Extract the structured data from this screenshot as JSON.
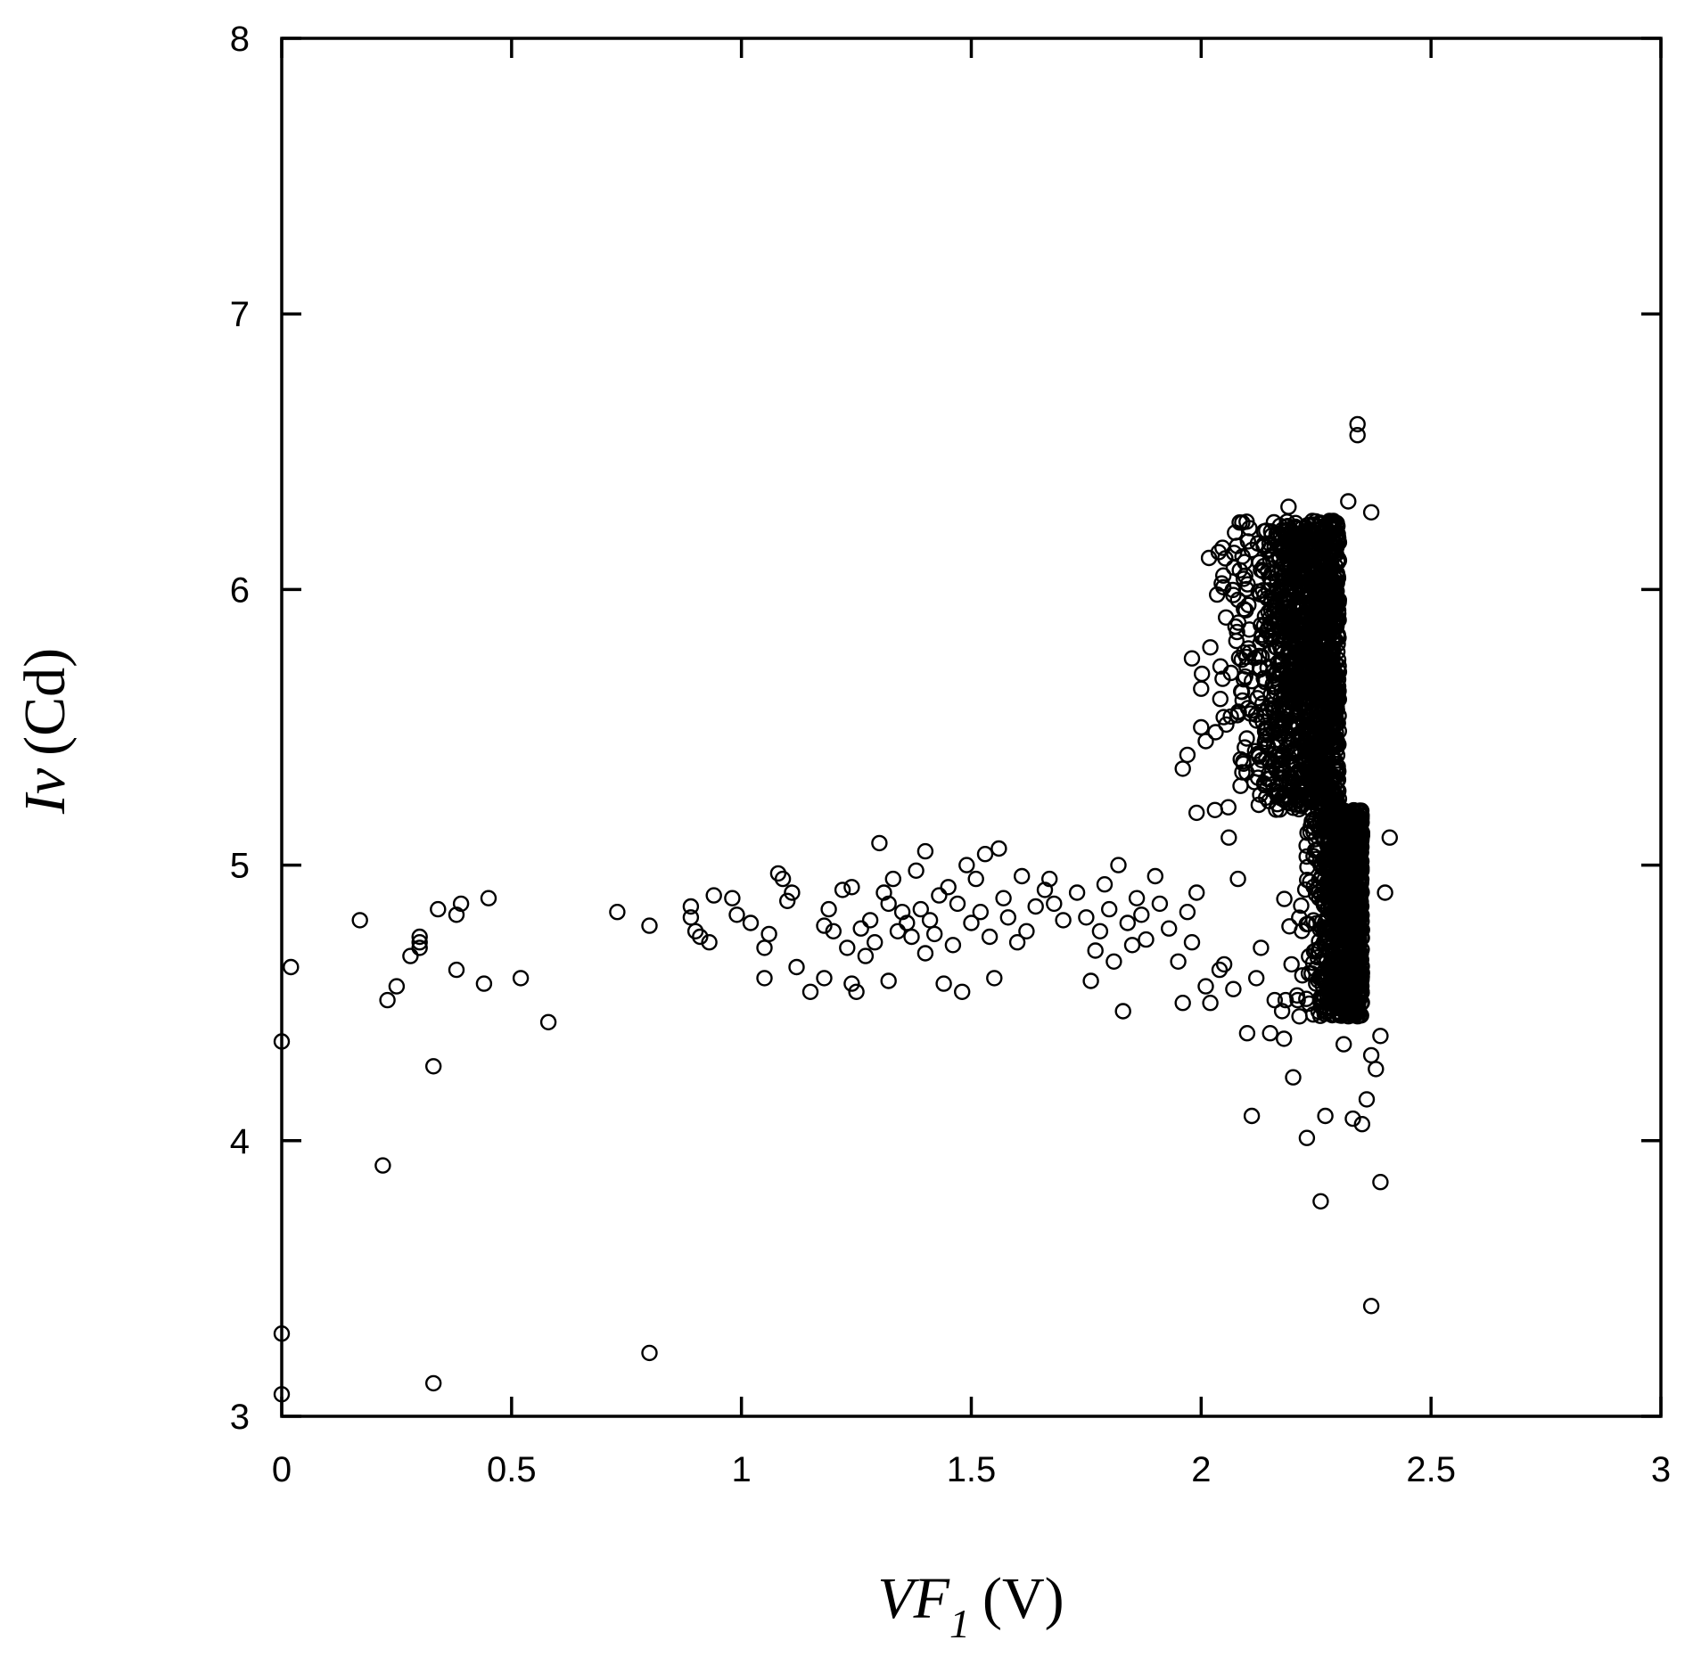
{
  "chart_data": {
    "type": "scatter",
    "title": "",
    "xlabel": {
      "main": "VF",
      "sub": "1",
      "unit": "(V)"
    },
    "ylabel": {
      "main": "Iv",
      "unit": "(Cd)"
    },
    "xlim": [
      0,
      3
    ],
    "ylim": [
      3,
      8
    ],
    "xticks": [
      0,
      0.5,
      1,
      1.5,
      2,
      2.5,
      3
    ],
    "yticks": [
      3,
      4,
      5,
      6,
      7,
      8
    ],
    "xtick_labels": [
      "0",
      "0.5",
      "1",
      "1.5",
      "2",
      "2.5",
      "3"
    ],
    "ytick_labels": [
      "3",
      "4",
      "5",
      "6",
      "7",
      "8"
    ],
    "grid": false,
    "marker": "open-circle",
    "color": "#000000",
    "points": [
      [
        0.0,
        4.36
      ],
      [
        0.02,
        4.63
      ],
      [
        0.0,
        3.3
      ],
      [
        0.0,
        3.08
      ],
      [
        0.17,
        4.8
      ],
      [
        0.22,
        3.91
      ],
      [
        0.23,
        4.51
      ],
      [
        0.25,
        4.56
      ],
      [
        0.28,
        4.67
      ],
      [
        0.3,
        4.74
      ],
      [
        0.3,
        4.7
      ],
      [
        0.3,
        4.72
      ],
      [
        0.33,
        4.27
      ],
      [
        0.34,
        4.84
      ],
      [
        0.33,
        3.12
      ],
      [
        0.38,
        4.82
      ],
      [
        0.39,
        4.86
      ],
      [
        0.38,
        4.62
      ],
      [
        0.44,
        4.57
      ],
      [
        0.45,
        4.88
      ],
      [
        0.52,
        4.59
      ],
      [
        0.58,
        4.43
      ],
      [
        0.73,
        4.83
      ],
      [
        0.8,
        4.78
      ],
      [
        0.8,
        3.23
      ],
      [
        0.89,
        4.85
      ],
      [
        0.89,
        4.81
      ],
      [
        0.9,
        4.76
      ],
      [
        0.91,
        4.74
      ],
      [
        0.93,
        4.72
      ],
      [
        0.94,
        4.89
      ],
      [
        0.98,
        4.88
      ],
      [
        0.99,
        4.82
      ],
      [
        1.02,
        4.79
      ],
      [
        1.05,
        4.7
      ],
      [
        1.05,
        4.59
      ],
      [
        1.06,
        4.75
      ],
      [
        1.08,
        4.97
      ],
      [
        1.09,
        4.95
      ],
      [
        1.1,
        4.87
      ],
      [
        1.11,
        4.9
      ],
      [
        1.12,
        4.63
      ],
      [
        1.15,
        4.54
      ],
      [
        1.18,
        4.59
      ],
      [
        1.18,
        4.78
      ],
      [
        1.19,
        4.84
      ],
      [
        1.2,
        4.76
      ],
      [
        1.22,
        4.91
      ],
      [
        1.23,
        4.7
      ],
      [
        1.24,
        4.92
      ],
      [
        1.24,
        4.57
      ],
      [
        1.25,
        4.54
      ],
      [
        1.26,
        4.77
      ],
      [
        1.27,
        4.67
      ],
      [
        1.28,
        4.8
      ],
      [
        1.29,
        4.72
      ],
      [
        1.3,
        5.08
      ],
      [
        1.31,
        4.9
      ],
      [
        1.32,
        4.86
      ],
      [
        1.32,
        4.58
      ],
      [
        1.33,
        4.95
      ],
      [
        1.34,
        4.76
      ],
      [
        1.35,
        4.83
      ],
      [
        1.36,
        4.79
      ],
      [
        1.37,
        4.74
      ],
      [
        1.38,
        4.98
      ],
      [
        1.39,
        4.84
      ],
      [
        1.4,
        5.05
      ],
      [
        1.4,
        4.68
      ],
      [
        1.41,
        4.8
      ],
      [
        1.42,
        4.75
      ],
      [
        1.43,
        4.89
      ],
      [
        1.44,
        4.57
      ],
      [
        1.45,
        4.92
      ],
      [
        1.46,
        4.71
      ],
      [
        1.47,
        4.86
      ],
      [
        1.48,
        4.54
      ],
      [
        1.49,
        5.0
      ],
      [
        1.5,
        4.79
      ],
      [
        1.51,
        4.95
      ],
      [
        1.52,
        4.83
      ],
      [
        1.53,
        5.04
      ],
      [
        1.54,
        4.74
      ],
      [
        1.55,
        4.59
      ],
      [
        1.56,
        5.06
      ],
      [
        1.57,
        4.88
      ],
      [
        1.58,
        4.81
      ],
      [
        1.6,
        4.72
      ],
      [
        1.61,
        4.96
      ],
      [
        1.62,
        4.76
      ],
      [
        1.64,
        4.85
      ],
      [
        1.66,
        4.91
      ],
      [
        1.67,
        4.95
      ],
      [
        1.68,
        4.86
      ],
      [
        1.7,
        4.8
      ],
      [
        1.73,
        4.9
      ],
      [
        1.75,
        4.81
      ],
      [
        1.76,
        4.58
      ],
      [
        1.77,
        4.69
      ],
      [
        1.78,
        4.76
      ],
      [
        1.79,
        4.93
      ],
      [
        1.8,
        4.84
      ],
      [
        1.81,
        4.65
      ],
      [
        1.82,
        5.0
      ],
      [
        1.83,
        4.47
      ],
      [
        1.84,
        4.79
      ],
      [
        1.85,
        4.71
      ],
      [
        1.86,
        4.88
      ],
      [
        1.87,
        4.82
      ],
      [
        1.88,
        4.73
      ],
      [
        1.9,
        4.96
      ],
      [
        1.91,
        4.86
      ],
      [
        1.93,
        4.77
      ],
      [
        1.95,
        4.65
      ],
      [
        1.96,
        4.5
      ],
      [
        1.97,
        4.83
      ],
      [
        1.98,
        4.72
      ],
      [
        1.99,
        4.9
      ],
      [
        2.01,
        4.56
      ],
      [
        2.02,
        4.5
      ],
      [
        1.96,
        5.35
      ],
      [
        1.97,
        5.4
      ],
      [
        1.98,
        5.75
      ],
      [
        1.99,
        5.19
      ],
      [
        2.0,
        5.5
      ],
      [
        2.0,
        5.64
      ],
      [
        2.01,
        5.45
      ],
      [
        2.02,
        5.79
      ],
      [
        2.03,
        5.2
      ],
      [
        2.04,
        4.62
      ],
      [
        2.05,
        4.64
      ],
      [
        2.06,
        5.1
      ],
      [
        2.07,
        4.55
      ],
      [
        2.07,
        5.98
      ],
      [
        2.08,
        4.95
      ],
      [
        2.09,
        6.12
      ],
      [
        2.1,
        4.39
      ],
      [
        2.11,
        4.09
      ],
      [
        2.12,
        4.59
      ],
      [
        2.13,
        4.7
      ],
      [
        2.15,
        4.39
      ],
      [
        2.16,
        4.51
      ],
      [
        2.18,
        4.37
      ],
      [
        2.19,
        6.3
      ],
      [
        2.2,
        4.23
      ],
      [
        2.21,
        4.51
      ],
      [
        2.22,
        4.6
      ],
      [
        2.23,
        4.01
      ],
      [
        2.25,
        4.57
      ],
      [
        2.26,
        3.78
      ],
      [
        2.27,
        4.09
      ],
      [
        2.28,
        4.47
      ],
      [
        2.29,
        6.24
      ],
      [
        2.31,
        4.35
      ],
      [
        2.32,
        6.32
      ],
      [
        2.33,
        4.08
      ],
      [
        2.34,
        6.56
      ],
      [
        2.34,
        6.6
      ],
      [
        2.35,
        4.06
      ],
      [
        2.36,
        4.15
      ],
      [
        2.37,
        6.28
      ],
      [
        2.37,
        3.4
      ],
      [
        2.38,
        4.26
      ],
      [
        2.39,
        3.85
      ],
      [
        2.39,
        4.38
      ],
      [
        2.4,
        4.9
      ],
      [
        2.41,
        5.1
      ],
      [
        2.37,
        4.31
      ]
    ],
    "dense_cluster": {
      "x_center": 2.28,
      "y_range": [
        4.4,
        6.25
      ],
      "note_points": 2600
    }
  }
}
